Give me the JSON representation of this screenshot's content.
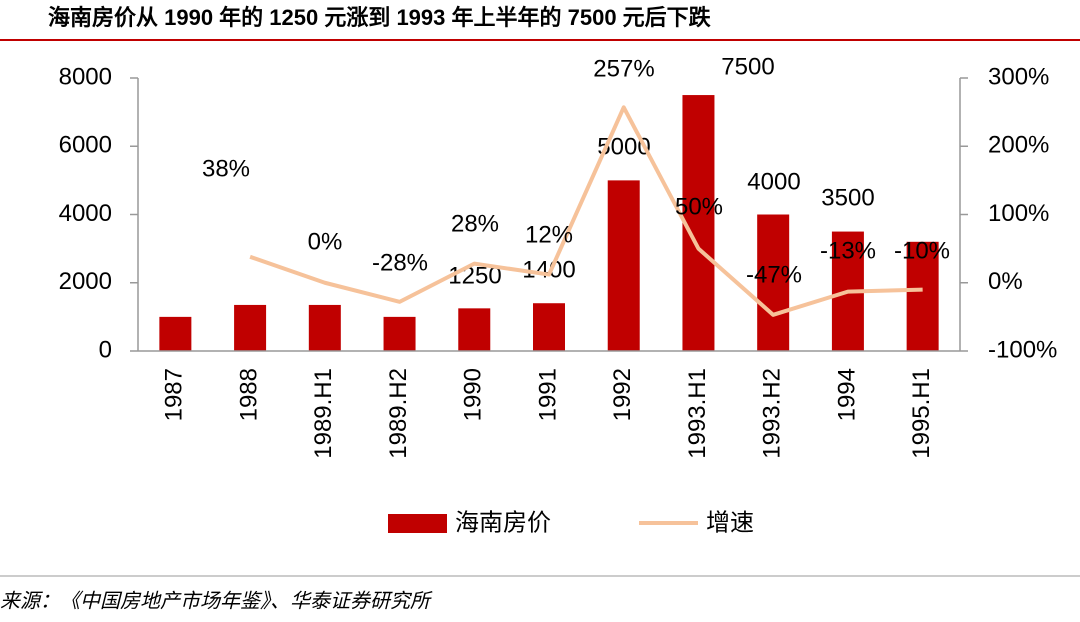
{
  "chart_data": {
    "type": "bar-line",
    "title": "海南房价从 1990 年的 1250 元涨到 1993 年上半年的 7500 元后下跌",
    "source": "来源：《中国房地产市场年鉴》、华泰证券研究所",
    "categories": [
      "1987",
      "1988",
      "1989.H1",
      "1989.H2",
      "1990",
      "1991",
      "1992",
      "1993.H1",
      "1993.H2",
      "1994",
      "1995.H1"
    ],
    "series": [
      {
        "name": "海南房价",
        "type": "bar",
        "color": "#c00000",
        "values": [
          1000,
          1350,
          1350,
          1000,
          1250,
          1400,
          5000,
          7500,
          4000,
          3500,
          3200
        ],
        "value_labels": [
          null,
          null,
          null,
          null,
          "1250",
          "1400",
          "5000",
          "7500",
          "4000",
          "3500",
          null
        ]
      },
      {
        "name": "增速",
        "type": "line",
        "axis": "y2",
        "color": "#f6c29a",
        "values": [
          null,
          38,
          0,
          -28,
          28,
          12,
          257,
          50,
          -47,
          -13,
          -10
        ],
        "value_labels": [
          null,
          "38%",
          "0%",
          "-28%",
          "28%",
          "12%",
          "257%",
          "50%",
          "-47%",
          "-13%",
          "-10%"
        ]
      }
    ],
    "ylim": [
      0,
      8000
    ],
    "yticks": [
      0,
      2000,
      4000,
      6000,
      8000
    ],
    "y2lim": [
      -100,
      300
    ],
    "y2ticks": [
      {
        "value": -100,
        "label": "-100%"
      },
      {
        "value": 0,
        "label": "0%"
      },
      {
        "value": 100,
        "label": "100%"
      },
      {
        "value": 200,
        "label": "200%"
      },
      {
        "value": 300,
        "label": "300%"
      }
    ],
    "legend": "bottom"
  }
}
